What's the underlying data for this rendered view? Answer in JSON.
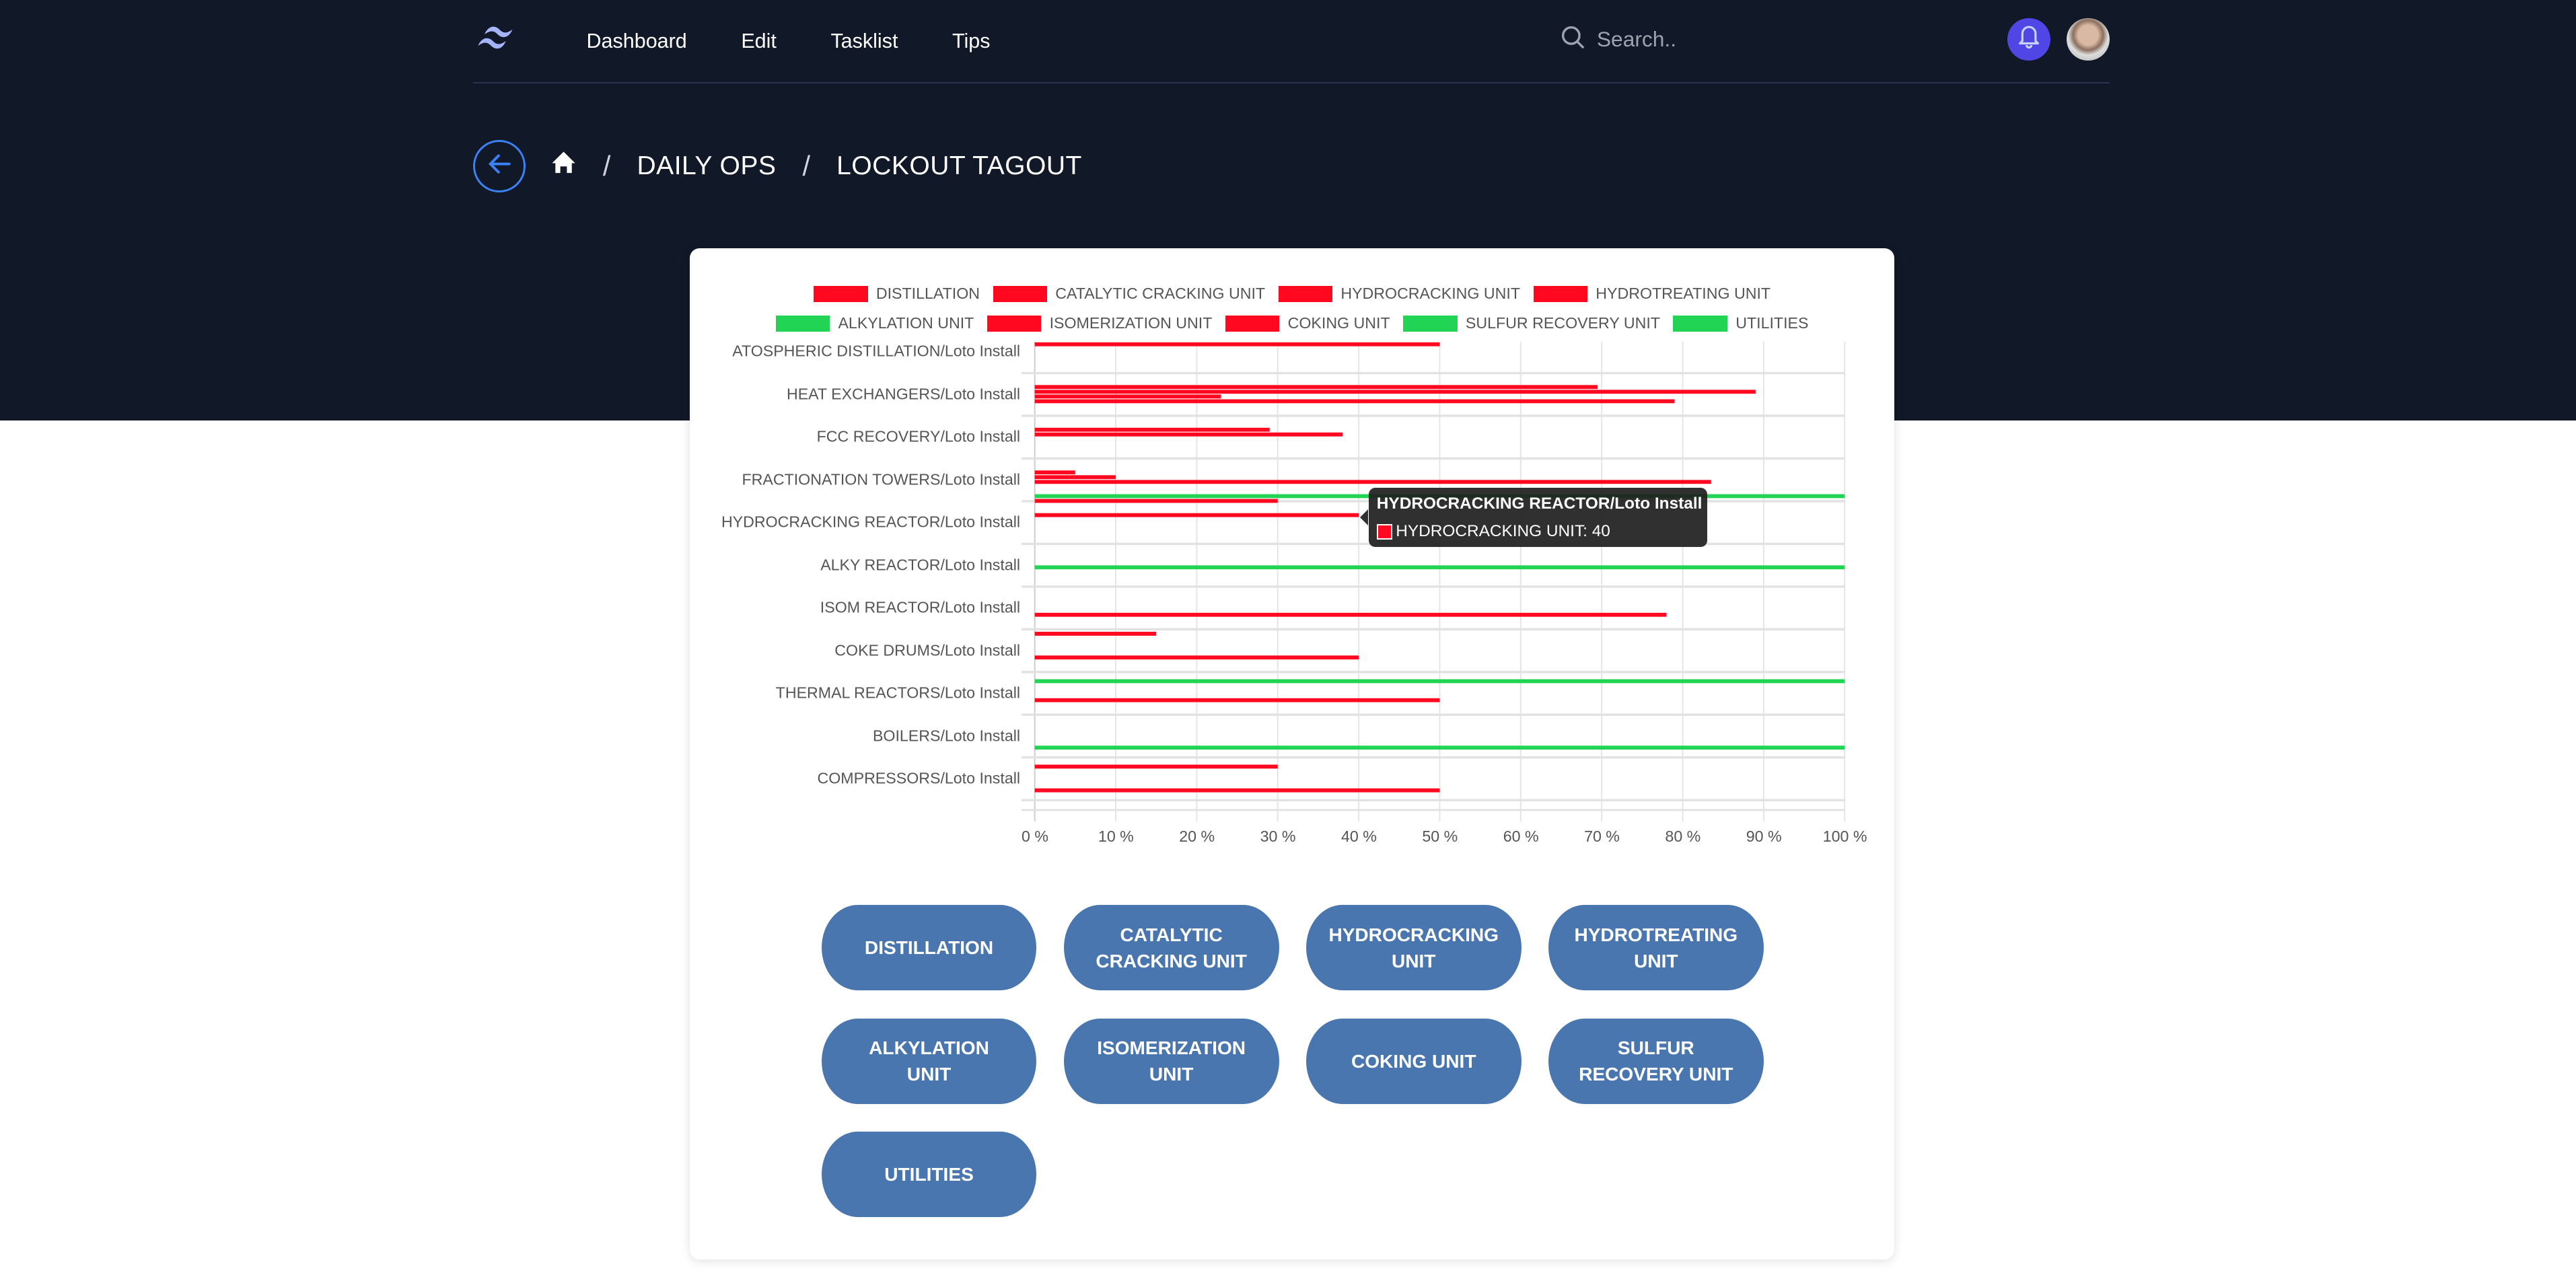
{
  "nav": {
    "links": [
      "Dashboard",
      "Edit",
      "Tasklist",
      "Tips"
    ],
    "search_placeholder": "Search..",
    "icons": {
      "logo": "tailwind-wave-logo",
      "search": "search-icon",
      "notifications": "bell-icon",
      "avatar": "user-avatar"
    }
  },
  "breadcrumb": {
    "items": [
      "DAILY OPS",
      "LOCKOUT TAGOUT"
    ],
    "separator": "/",
    "icons": {
      "back": "arrow-left-icon",
      "home": "home-icon"
    }
  },
  "colors": {
    "red": "#ff0820",
    "green": "#22d453",
    "button": "#4a76b0",
    "header_bg": "#111827",
    "bell_bg": "#4f46e5"
  },
  "chart_data": {
    "type": "bar",
    "orientation": "horizontal",
    "categories": [
      "ATOSPHERIC DISTILLATION/Loto Install",
      "HEAT EXCHANGERS/Loto Install",
      "FCC RECOVERY/Loto Install",
      "FRACTIONATION TOWERS/Loto Install",
      "HYDROCRACKING REACTOR/Loto Install",
      "ALKY REACTOR/Loto Install",
      "ISOM REACTOR/Loto Install",
      "COKE DRUMS/Loto Install",
      "THERMAL REACTORS/Loto Install",
      "BOILERS/Loto Install",
      "COMPRESSORS/Loto Install"
    ],
    "series": [
      {
        "name": "DISTILLATION",
        "legend_color": "#ff0820",
        "values": [
          null,
          null,
          null,
          null,
          null,
          null,
          null,
          15,
          null,
          null,
          null
        ]
      },
      {
        "name": "CATALYTIC CRACKING UNIT",
        "legend_color": "#ff0820",
        "values": [
          null,
          null,
          null,
          null,
          null,
          null,
          null,
          null,
          100,
          null,
          30
        ]
      },
      {
        "name": "HYDROCRACKING UNIT",
        "legend_color": "#ff0820",
        "values": [
          50,
          69.5,
          29,
          5,
          40,
          null,
          null,
          null,
          null,
          null,
          null
        ]
      },
      {
        "name": "HYDROTREATING UNIT",
        "legend_color": "#ff0820",
        "values": [
          null,
          89,
          38,
          10,
          null,
          null,
          null,
          null,
          null,
          null,
          null
        ]
      },
      {
        "name": "ALKYLATION UNIT",
        "legend_color": "#22d453",
        "values": [
          null,
          23,
          null,
          83.5,
          null,
          100,
          null,
          null,
          null,
          null,
          null
        ]
      },
      {
        "name": "ISOMERIZATION UNIT",
        "legend_color": "#ff0820",
        "values": [
          null,
          79,
          null,
          null,
          null,
          null,
          78,
          40,
          50,
          null,
          null
        ]
      },
      {
        "name": "COKING UNIT",
        "legend_color": "#ff0820",
        "values": [
          null,
          null,
          null,
          null,
          null,
          null,
          null,
          null,
          null,
          100,
          50
        ]
      },
      {
        "name": "SULFUR RECOVERY UNIT",
        "legend_color": "#22d453",
        "values": [
          null,
          null,
          null,
          100,
          null,
          null,
          null,
          null,
          null,
          null,
          null
        ]
      },
      {
        "name": "UTILITIES",
        "legend_color": "#22d453",
        "values": [
          null,
          null,
          null,
          30,
          null,
          null,
          null,
          null,
          null,
          null,
          null
        ]
      }
    ],
    "xticks": [
      "0 %",
      "10 %",
      "20 %",
      "30 %",
      "40 %",
      "50 %",
      "60 %",
      "70 %",
      "80 %",
      "90 %",
      "100 %"
    ],
    "xlim": [
      0,
      100
    ],
    "grid": true,
    "legend": "top",
    "tooltip": {
      "title": "HYDROCRACKING REACTOR/Loto Install",
      "line": "HYDROCRACKING UNIT: 40"
    }
  },
  "unit_buttons": [
    "DISTILLATION",
    "CATALYTIC CRACKING UNIT",
    "HYDROCRACKING UNIT",
    "HYDROTREATING UNIT",
    "ALKYLATION UNIT",
    "ISOMERIZATION UNIT",
    "COKING UNIT",
    "SULFUR RECOVERY UNIT",
    "UTILITIES"
  ]
}
